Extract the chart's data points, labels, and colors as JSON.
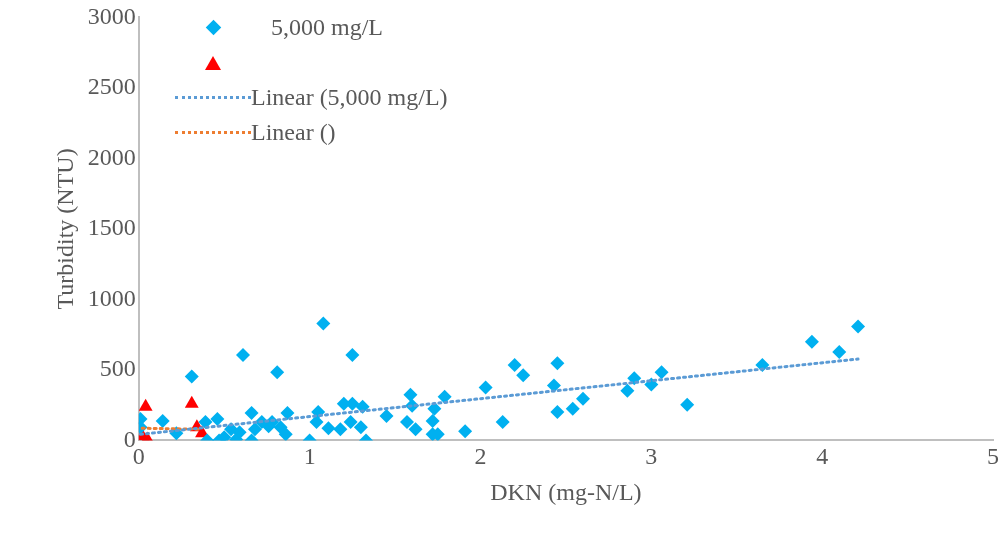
{
  "chart_data": {
    "type": "scatter",
    "xlabel": "DKN (mg-N/L)",
    "ylabel": "Turbidity (NTU)",
    "xlim": [
      0,
      5
    ],
    "xticks": [
      0,
      1,
      2,
      3,
      4,
      5
    ],
    "ylim": [
      0,
      3000
    ],
    "yticks": [
      0,
      500,
      1000,
      1500,
      2000,
      2500,
      3000
    ],
    "grid": false,
    "legend": "top left",
    "series": [
      {
        "name": "5,000 mg/L",
        "type": "scatter",
        "marker": "diamond",
        "color": "#00b0f0",
        "x": [
          0.01,
          0.01,
          0.14,
          0.22,
          0.31,
          0.39,
          0.4,
          0.46,
          0.47,
          0.5,
          0.54,
          0.57,
          0.59,
          0.61,
          0.66,
          0.66,
          0.68,
          0.72,
          0.76,
          0.78,
          0.81,
          0.83,
          0.86,
          0.87,
          1.0,
          1.05,
          1.04,
          1.08,
          1.11,
          1.18,
          1.2,
          1.25,
          1.25,
          1.24,
          1.31,
          1.3,
          1.33,
          1.45,
          1.57,
          1.59,
          1.6,
          1.62,
          1.73,
          1.72,
          1.72,
          1.75,
          1.79,
          1.91,
          2.03,
          2.13,
          2.2,
          2.25,
          2.45,
          2.43,
          2.45,
          2.54,
          2.6,
          2.86,
          2.9,
          3.0,
          3.06,
          3.21,
          3.65,
          3.94,
          4.1,
          4.21
        ],
        "values": [
          151,
          94,
          137,
          50,
          454,
          130,
          0,
          151,
          0,
          22,
          79,
          7,
          58,
          606,
          195,
          0,
          79,
          130,
          101,
          130,
          483,
          94,
          43,
          195,
          0,
          202,
          130,
          829,
          86,
          79,
          260,
          606,
          260,
          130,
          238,
          94,
          0,
          173,
          130,
          324,
          245,
          79,
          224,
          137,
          43,
          43,
          310,
          65,
          375,
          130,
          534,
          462,
          548,
          389,
          202,
          224,
          296,
          353,
          440,
          397,
          483,
          252,
          534,
          699,
          627,
          808
        ]
      },
      {
        "type": "scatter",
        "marker": "triangle",
        "color": "#ff0000",
        "x": [
          0.02,
          0.04,
          0.05,
          0.31,
          0.34,
          0.37
        ],
        "values": [
          30,
          238,
          7,
          260,
          94,
          50
        ]
      },
      {
        "name": "Linear (5,000 mg/L)",
        "type": "line",
        "marker": "none",
        "line_style": "dotted",
        "color": "#5b9bd5",
        "x": [
          0.01,
          4.21
        ],
        "values": [
          43,
          577
        ]
      },
      {
        "name": "Linear ()",
        "type": "line",
        "marker": "none",
        "line_style": "dotted",
        "color": "#ed7d31",
        "x": [
          0.02,
          0.37
        ],
        "values": [
          86,
          79
        ]
      }
    ]
  }
}
